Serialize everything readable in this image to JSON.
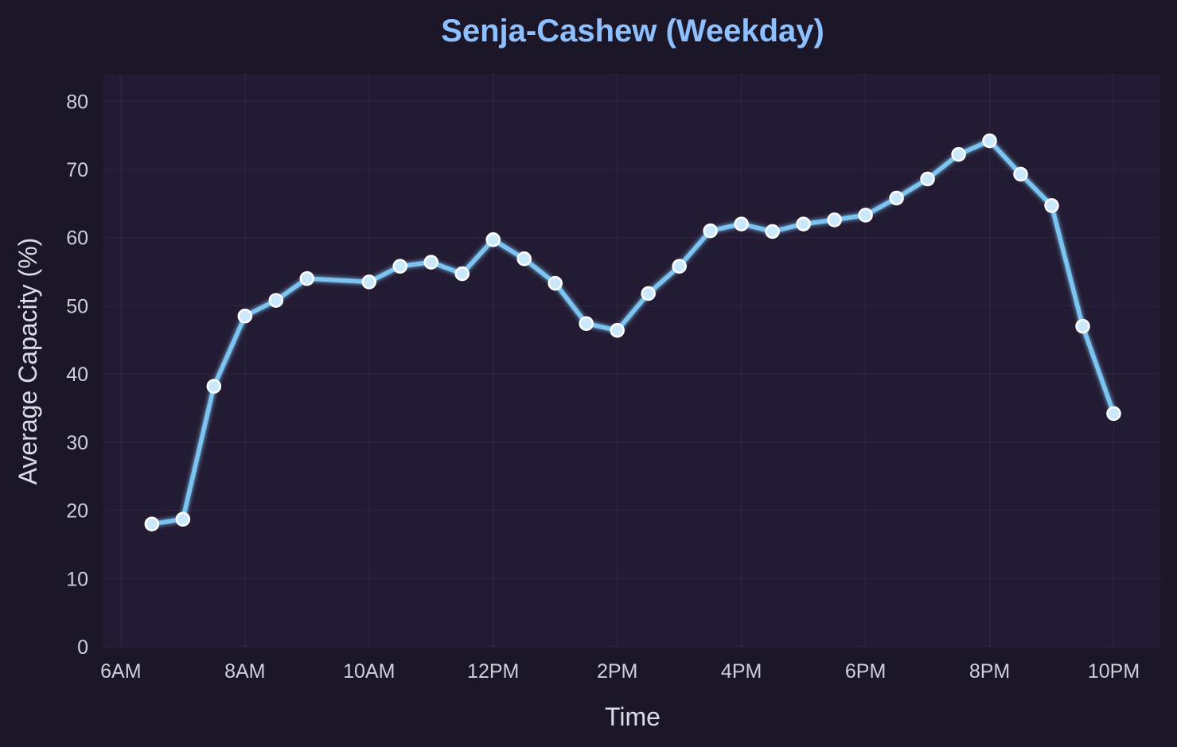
{
  "chart_data": {
    "type": "line",
    "title": "Senja-Cashew (Weekday)",
    "xlabel": "Time",
    "ylabel": "Average Capacity (%)",
    "x_unit": "hour of day",
    "x": [
      6.5,
      7,
      7.5,
      8,
      8.5,
      9,
      10,
      10.5,
      11,
      11.5,
      12,
      12.5,
      13,
      13.5,
      14,
      14.5,
      15,
      15.5,
      16,
      16.5,
      17,
      17.5,
      18,
      18.5,
      19,
      19.5,
      20,
      20.5,
      21,
      21.5,
      22
    ],
    "series": [
      {
        "values": [
          18.0,
          18.7,
          38.2,
          48.5,
          50.8,
          54.0,
          53.5,
          55.8,
          56.4,
          54.7,
          59.7,
          56.9,
          53.3,
          47.4,
          46.4,
          51.8,
          55.8,
          61.0,
          62.0,
          60.9,
          62.0,
          62.6,
          63.3,
          65.8,
          68.6,
          72.2,
          74.2,
          69.3,
          64.7,
          47.0,
          34.2
        ]
      }
    ],
    "x_ticks": [
      {
        "value": 6,
        "label": "6AM"
      },
      {
        "value": 8,
        "label": "8AM"
      },
      {
        "value": 10,
        "label": "10AM"
      },
      {
        "value": 12,
        "label": "12PM"
      },
      {
        "value": 14,
        "label": "2PM"
      },
      {
        "value": 16,
        "label": "4PM"
      },
      {
        "value": 18,
        "label": "6PM"
      },
      {
        "value": 20,
        "label": "8PM"
      },
      {
        "value": 22,
        "label": "10PM"
      }
    ],
    "y_ticks": [
      0,
      10,
      20,
      30,
      40,
      50,
      60,
      70,
      80
    ],
    "xlim": [
      5.72,
      22.75
    ],
    "ylim": [
      0,
      84
    ],
    "grid": true,
    "legend": "none"
  },
  "colors": {
    "background": "#1b1728",
    "plot_background": "#231b33",
    "title": "#8ec0ff",
    "line": "#7cc4f2",
    "marker_fill": "#c9e8fb",
    "marker_edge": "#ffffff",
    "grid": "#3a3450",
    "text": "#dcdce6"
  }
}
